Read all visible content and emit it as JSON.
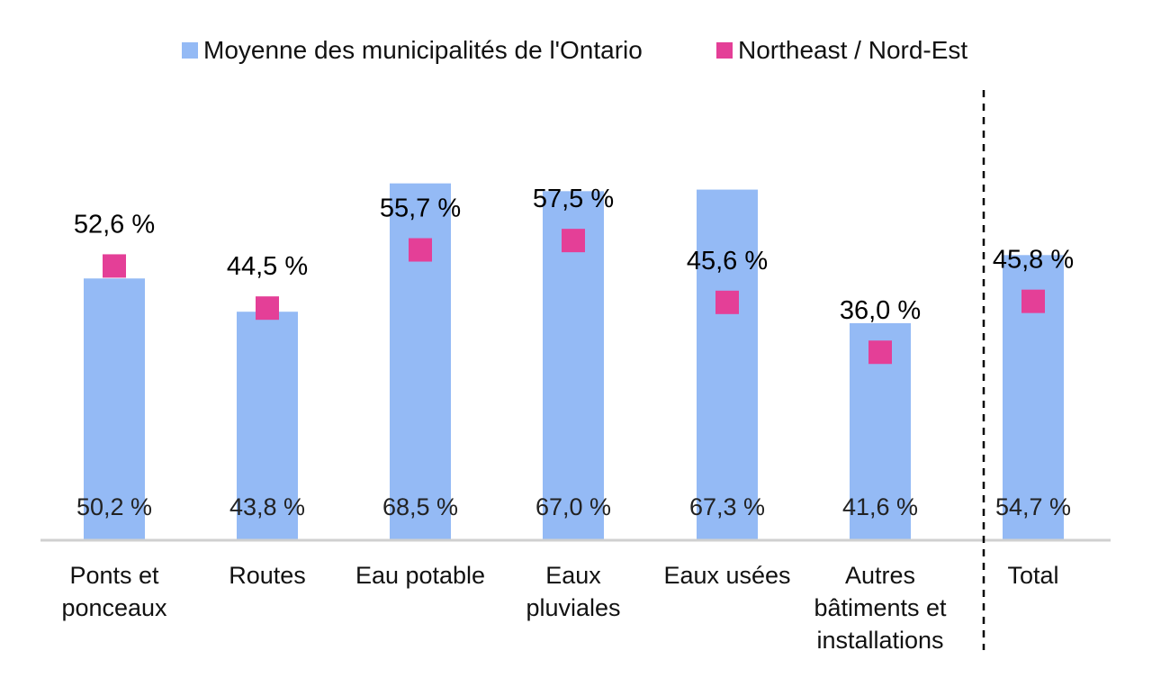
{
  "chart_data": {
    "type": "bar",
    "categories": [
      [
        "Ponts et",
        "ponceaux"
      ],
      [
        "Routes"
      ],
      [
        "Eau potable"
      ],
      [
        "Eaux",
        "pluviales"
      ],
      [
        "Eaux usées"
      ],
      [
        "Autres",
        "bâtiments et",
        "installations"
      ],
      [
        "Total"
      ]
    ],
    "series": [
      {
        "name": "Moyenne des municipalités de l'Ontario",
        "kind": "bar",
        "values": [
          50.2,
          43.8,
          68.5,
          67.0,
          67.3,
          41.6,
          54.7
        ],
        "labels": [
          "50,2 %",
          "43,8 %",
          "68,5 %",
          "67,0 %",
          "67,3 %",
          "41,6 %",
          "54,7 %"
        ],
        "color": "#94BAF5"
      },
      {
        "name": "Northeast / Nord-Est",
        "kind": "marker",
        "values": [
          52.6,
          44.5,
          55.7,
          57.5,
          45.6,
          36.0,
          45.8
        ],
        "labels": [
          "52,6 %",
          "44,5 %",
          "55,7 %",
          "57,5 %",
          "45,6 %",
          "36,0 %",
          "45,8 %"
        ],
        "color": "#E43F97"
      }
    ],
    "ylim": [
      0,
      70
    ],
    "grid": false,
    "legend_position": "top",
    "separator_before_category": "Total"
  }
}
